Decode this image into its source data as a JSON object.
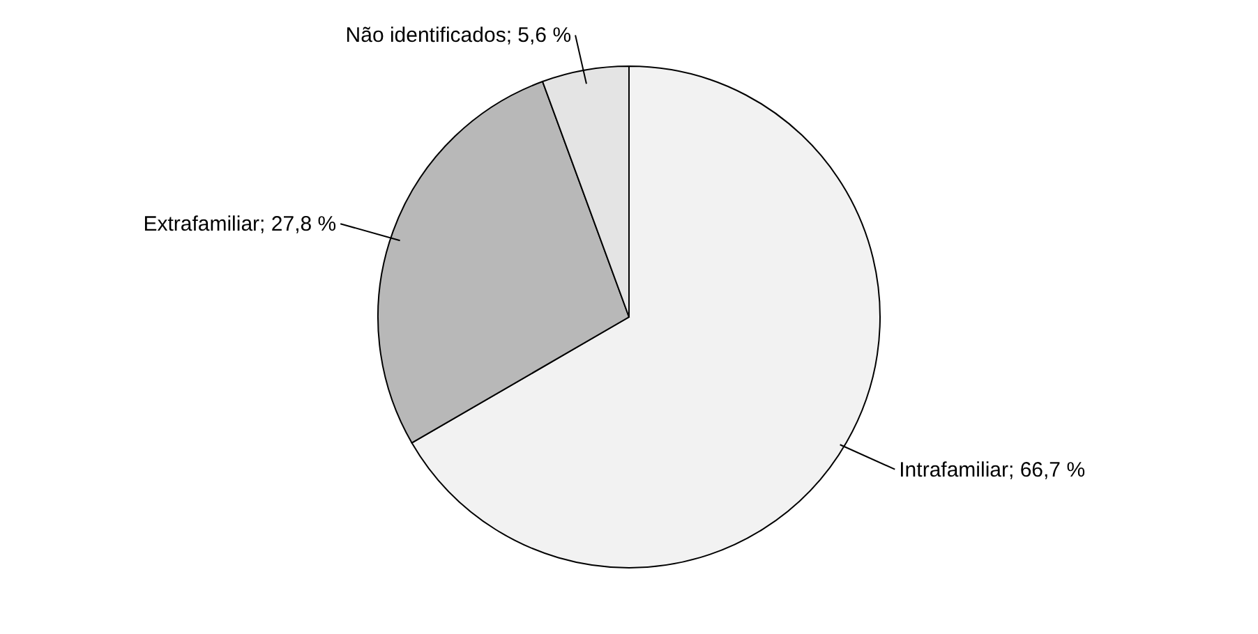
{
  "chart_data": {
    "type": "pie",
    "categories": [
      "Intrafamiliar",
      "Extrafamiliar",
      "Não identificados"
    ],
    "values": [
      66.7,
      27.8,
      5.6
    ],
    "value_labels": [
      "66,7 %",
      "27,8 %",
      "5,6 %"
    ],
    "colors": [
      "#f2f2f2",
      "#b8b8b8",
      "#e4e4e4"
    ],
    "legend": false
  }
}
